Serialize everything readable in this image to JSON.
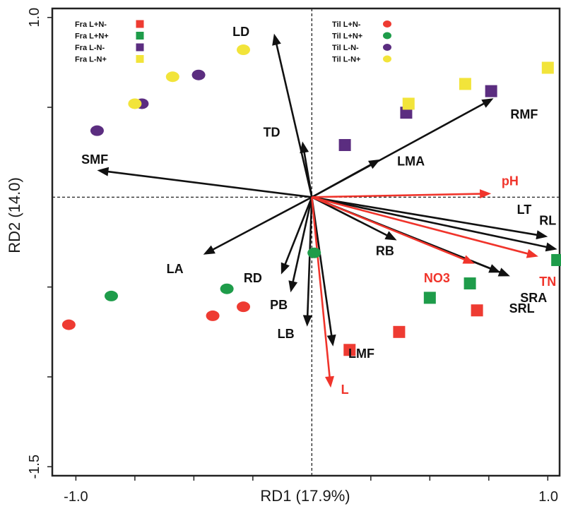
{
  "chart_data": {
    "type": "scatter",
    "xlabel": "RD1 (17.9%)",
    "ylabel": "RD2 (14.0)",
    "xlim": [
      -1.1,
      1.05
    ],
    "ylim": [
      -1.55,
      1.05
    ],
    "x_ticks": [
      {
        "value": -1.0,
        "label": "-1.0"
      },
      {
        "value": 1.0,
        "label": "1.0"
      }
    ],
    "y_ticks": [
      {
        "value": 1.0,
        "label": "1.0"
      },
      {
        "value": -1.5,
        "label": "-1.5"
      }
    ],
    "minor_ticks_x": [
      -0.75,
      -0.5,
      -0.25,
      0.25,
      0.5,
      0.75
    ],
    "minor_ticks_y": [
      0.5,
      -0.5,
      -1.0
    ],
    "grid": false,
    "zero_lines": true,
    "legends": [
      {
        "placement": "top-left",
        "marker": "square",
        "entries": [
          {
            "label": "Fra  L+N-",
            "color": "#ee3b32"
          },
          {
            "label": "Fra  L+N+",
            "color": "#1e9c4a"
          },
          {
            "label": "Fra  L-N-",
            "color": "#5b2d80"
          },
          {
            "label": "Fra  L-N+",
            "color": "#f2e43a"
          }
        ]
      },
      {
        "placement": "top-right",
        "marker": "circle",
        "entries": [
          {
            "label": "Til  L+N-",
            "color": "#ee3b32"
          },
          {
            "label": "Til  L+N+",
            "color": "#1e9c4a"
          },
          {
            "label": "Til  L-N-",
            "color": "#5b2d80"
          },
          {
            "label": "Til  L-N+",
            "color": "#f2e43a"
          }
        ]
      }
    ],
    "vectors": [
      {
        "label": "LD",
        "x": -0.16,
        "y": 0.91,
        "color": "black",
        "label_at": [
          -0.3,
          0.92
        ]
      },
      {
        "label": "TD",
        "x": -0.04,
        "y": 0.31,
        "color": "black",
        "label_at": [
          -0.17,
          0.36
        ]
      },
      {
        "label": "SMF",
        "x": -0.91,
        "y": 0.15,
        "color": "black",
        "label_at": [
          -0.92,
          0.21
        ]
      },
      {
        "label": "LA",
        "x": -0.46,
        "y": -0.32,
        "color": "black",
        "label_at": [
          -0.58,
          -0.4
        ]
      },
      {
        "label": "RD",
        "x": -0.13,
        "y": -0.43,
        "color": "black",
        "label_at": [
          -0.25,
          -0.45
        ]
      },
      {
        "label": "PB",
        "x": -0.09,
        "y": -0.53,
        "color": "black",
        "label_at": [
          -0.14,
          -0.6
        ]
      },
      {
        "label": "LB",
        "x": -0.02,
        "y": -0.72,
        "color": "black",
        "label_at": [
          -0.11,
          -0.76
        ]
      },
      {
        "label": "LMF",
        "x": 0.09,
        "y": -0.83,
        "color": "black",
        "label_at": [
          0.21,
          -0.87
        ]
      },
      {
        "label": "RB",
        "x": 0.36,
        "y": -0.24,
        "color": "black",
        "label_at": [
          0.31,
          -0.3
        ]
      },
      {
        "label": "LMA",
        "x": 0.29,
        "y": 0.21,
        "color": "black",
        "label_at": [
          0.42,
          0.2
        ]
      },
      {
        "label": "RMF",
        "x": 0.77,
        "y": 0.55,
        "color": "black",
        "label_at": [
          0.9,
          0.46
        ]
      },
      {
        "label": "LT",
        "x": 1.0,
        "y": -0.22,
        "color": "black",
        "label_at": [
          0.9,
          -0.07
        ]
      },
      {
        "label": "RL",
        "x": 1.04,
        "y": -0.29,
        "color": "black",
        "label_at": [
          1.0,
          -0.13
        ]
      },
      {
        "label": "SRA",
        "x": 0.84,
        "y": -0.44,
        "color": "black",
        "label_at": [
          0.94,
          -0.56
        ]
      },
      {
        "label": "SRL",
        "x": 0.8,
        "y": -0.42,
        "color": "black",
        "label_at": [
          0.89,
          -0.62
        ]
      },
      {
        "label": "pH",
        "x": 0.76,
        "y": 0.02,
        "color": "red",
        "label_at": [
          0.84,
          0.09
        ]
      },
      {
        "label": "TN",
        "x": 0.96,
        "y": -0.33,
        "color": "red",
        "label_at": [
          1.0,
          -0.47
        ]
      },
      {
        "label": "NO3",
        "x": 0.69,
        "y": -0.37,
        "color": "red",
        "label_at": [
          0.53,
          -0.45
        ]
      },
      {
        "label": "L",
        "x": 0.08,
        "y": -1.06,
        "color": "red",
        "label_at": [
          0.14,
          -1.07
        ]
      }
    ],
    "series": [
      {
        "group": "Fra",
        "treatment": "L+N-",
        "marker": "square",
        "color": "#ee3b32",
        "points": [
          [
            0.16,
            -0.85
          ],
          [
            0.37,
            -0.75
          ],
          [
            0.7,
            -0.63
          ]
        ]
      },
      {
        "group": "Fra",
        "treatment": "L+N+",
        "marker": "square",
        "color": "#1e9c4a",
        "points": [
          [
            0.5,
            -0.56
          ],
          [
            0.67,
            -0.48
          ],
          [
            1.04,
            -0.35
          ]
        ]
      },
      {
        "group": "Fra",
        "treatment": "L-N-",
        "marker": "square",
        "color": "#5b2d80",
        "points": [
          [
            0.14,
            0.29
          ],
          [
            0.4,
            0.47
          ],
          [
            0.76,
            0.59
          ]
        ]
      },
      {
        "group": "Fra",
        "treatment": "L-N+",
        "marker": "square",
        "color": "#f2e43a",
        "points": [
          [
            0.41,
            0.52
          ],
          [
            0.65,
            0.63
          ],
          [
            1.0,
            0.72
          ]
        ]
      },
      {
        "group": "Til",
        "treatment": "L+N-",
        "marker": "circle",
        "color": "#ee3b32",
        "points": [
          [
            -1.03,
            -0.71
          ],
          [
            -0.42,
            -0.66
          ],
          [
            -0.29,
            -0.61
          ]
        ]
      },
      {
        "group": "Til",
        "treatment": "L+N+",
        "marker": "circle",
        "color": "#1e9c4a",
        "points": [
          [
            -0.85,
            -0.55
          ],
          [
            -0.36,
            -0.51
          ],
          [
            0.01,
            -0.31
          ]
        ]
      },
      {
        "group": "Til",
        "treatment": "L-N-",
        "marker": "circle",
        "color": "#5b2d80",
        "points": [
          [
            -0.91,
            0.37
          ],
          [
            -0.72,
            0.52
          ],
          [
            -0.48,
            0.68
          ]
        ]
      },
      {
        "group": "Til",
        "treatment": "L-N+",
        "marker": "circle",
        "color": "#f2e43a",
        "points": [
          [
            -0.75,
            0.52
          ],
          [
            -0.59,
            0.67
          ],
          [
            -0.29,
            0.82
          ]
        ]
      }
    ]
  }
}
